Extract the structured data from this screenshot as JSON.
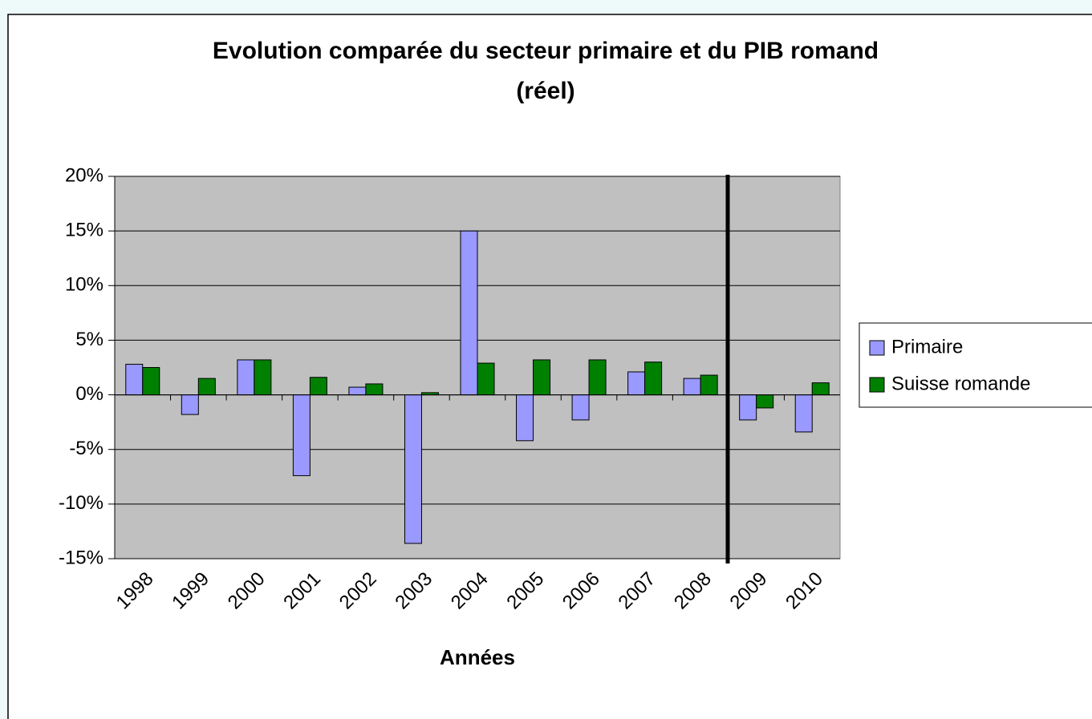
{
  "chart_data": {
    "type": "bar",
    "title": [
      "Evolution comparée du secteur primaire et du PIB romand",
      "(réel)"
    ],
    "x_label": "Années",
    "categories": [
      "1998",
      "1999",
      "2000",
      "2001",
      "2002",
      "2003",
      "2004",
      "2005",
      "2006",
      "2007",
      "2008",
      "2009",
      "2010"
    ],
    "series": [
      {
        "name": "Primaire",
        "color": "#9999ff",
        "values": [
          2.8,
          -1.8,
          3.2,
          -7.4,
          0.7,
          -13.6,
          15.0,
          -4.2,
          -2.3,
          2.1,
          1.5,
          -2.3,
          -3.4
        ]
      },
      {
        "name": "Suisse romande",
        "color": "#008000",
        "values": [
          2.5,
          1.5,
          3.2,
          1.6,
          1.0,
          0.2,
          2.9,
          3.2,
          3.2,
          3.0,
          1.8,
          -1.2,
          1.1
        ]
      }
    ],
    "ylim": [
      -15,
      20
    ],
    "yticks": [
      {
        "value": -15,
        "label": "-15%"
      },
      {
        "value": -10,
        "label": "-10%"
      },
      {
        "value": -5,
        "label": "-5%"
      },
      {
        "value": 0,
        "label": "0%"
      },
      {
        "value": 5,
        "label": "5%"
      },
      {
        "value": 10,
        "label": "10%"
      },
      {
        "value": 15,
        "label": "15%"
      },
      {
        "value": 20,
        "label": "20%"
      }
    ],
    "grid": true,
    "legend": "right"
  }
}
